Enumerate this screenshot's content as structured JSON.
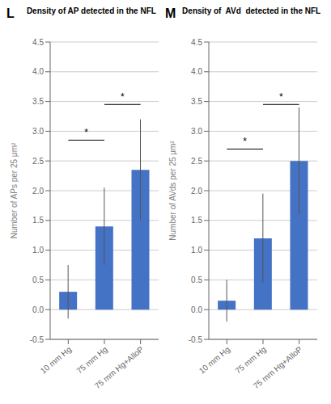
{
  "chart_data": [
    {
      "type": "bar",
      "title": "Density of AP detected in the NFL",
      "panel_label": "L",
      "categories": [
        "10 mm Hg",
        "75 mm Hg",
        "75 mm Hg+AlloP"
      ],
      "values": [
        0.3,
        1.4,
        2.35
      ],
      "errors": [
        0.45,
        0.65,
        0.85
      ],
      "ylabel": "Number of APs per 25 μm²",
      "ylim": [
        -0.5,
        4.5
      ],
      "yticks": [
        -0.5,
        {
          "value": 0,
          "label": "0.0"
        },
        0.5,
        {
          "value": 1,
          "label": "1.0"
        },
        1.5,
        {
          "value": 2,
          "label": "2.0"
        },
        2.5,
        {
          "value": 3,
          "label": "3.0"
        },
        3.5,
        {
          "value": 4,
          "label": "4.0"
        },
        4.5
      ],
      "color": "#4472C4",
      "grid": true,
      "annotations": [
        {
          "x1": "10 mm Hg",
          "x2": "75 mm Hg",
          "y": 2.85,
          "label": "*"
        },
        {
          "x1": "75 mm Hg",
          "x2": "75 mm Hg+AlloP",
          "y": 3.45,
          "label": "*"
        }
      ]
    },
    {
      "type": "bar",
      "title": "Density of  AVd  detected in the NFL",
      "panel_label": "M",
      "categories": [
        "10 mm Hg",
        "75 mm Hg",
        "75 mm Hg+AlloP"
      ],
      "values": [
        0.15,
        1.2,
        2.5
      ],
      "errors": [
        0.35,
        0.75,
        0.9
      ],
      "ylabel": "Number of AVds per 25 μm²",
      "ylim": [
        -0.5,
        4.5
      ],
      "yticks": [
        -0.5,
        {
          "value": 0,
          "label": "0.0"
        },
        0.5,
        {
          "value": 1,
          "label": "1.0"
        },
        1.5,
        {
          "value": 2,
          "label": "2.0"
        },
        2.5,
        {
          "value": 3,
          "label": "3.0"
        },
        3.5,
        {
          "value": 4,
          "label": "4.0"
        },
        4.5
      ],
      "color": "#4472C4",
      "grid": true,
      "annotations": [
        {
          "x1": "10 mm Hg",
          "x2": "75 mm Hg",
          "y": 2.7,
          "label": "*"
        },
        {
          "x1": "75 mm Hg",
          "x2": "75 mm Hg+AlloP",
          "y": 3.45,
          "label": "*"
        }
      ]
    }
  ]
}
